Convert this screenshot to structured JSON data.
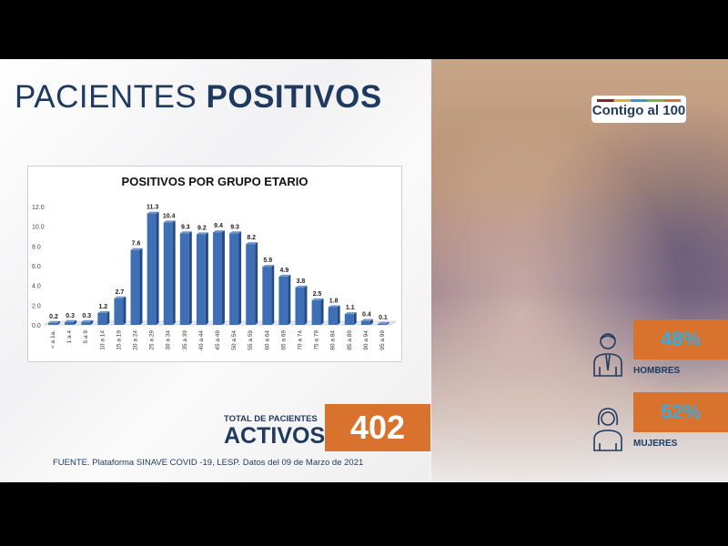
{
  "header": {
    "title_light": "PACIENTES",
    "title_bold": "POSITIVOS"
  },
  "chart_data": {
    "type": "bar",
    "title": "POSITIVOS POR GRUPO ETARIO",
    "categories": [
      "< a 1a.",
      "1 a 4",
      "5 a 9",
      "10 a 14",
      "15 a 19",
      "20 a 24",
      "25 a 29",
      "30 a 34",
      "35 a 39",
      "40 a 44",
      "45 a 49",
      "50 a 54",
      "55 a 59",
      "60 a 64",
      "65 a 69",
      "70 a 74",
      "75 a 79",
      "80 a 84",
      "85 a 89",
      "90 a 94",
      "95 a 99"
    ],
    "values": [
      0.2,
      0.3,
      0.3,
      1.2,
      2.7,
      7.6,
      11.3,
      10.4,
      9.3,
      9.2,
      9.4,
      9.3,
      8.2,
      5.9,
      4.9,
      3.8,
      2.5,
      1.8,
      1.1,
      0.4,
      0.1
    ],
    "ylim": [
      0,
      12
    ],
    "yticks": [
      "0.0",
      "2.0",
      "4.0",
      "6.0",
      "8.0",
      "10.0",
      "12.0"
    ],
    "xlabel": "",
    "ylabel": "",
    "grid": false,
    "bar_color": "#3f6fb5"
  },
  "totals": {
    "label_small": "TOTAL DE PACIENTES",
    "label_big": "ACTIVOS",
    "value": "402"
  },
  "source": "FUENTE. Plataforma SINAVE COVID -19, LESP. Datos del 09 de Marzo de 2021",
  "logo": {
    "text": "Contigo al 100"
  },
  "gender": [
    {
      "percent": "48%",
      "label": "HOMBRES",
      "icon": "man-icon"
    },
    {
      "percent": "52%",
      "label": "MUJERES",
      "icon": "woman-icon"
    }
  ],
  "colors": {
    "navy": "#1f3a5f",
    "orange": "#d9722c",
    "cyan": "#3aaae0"
  }
}
